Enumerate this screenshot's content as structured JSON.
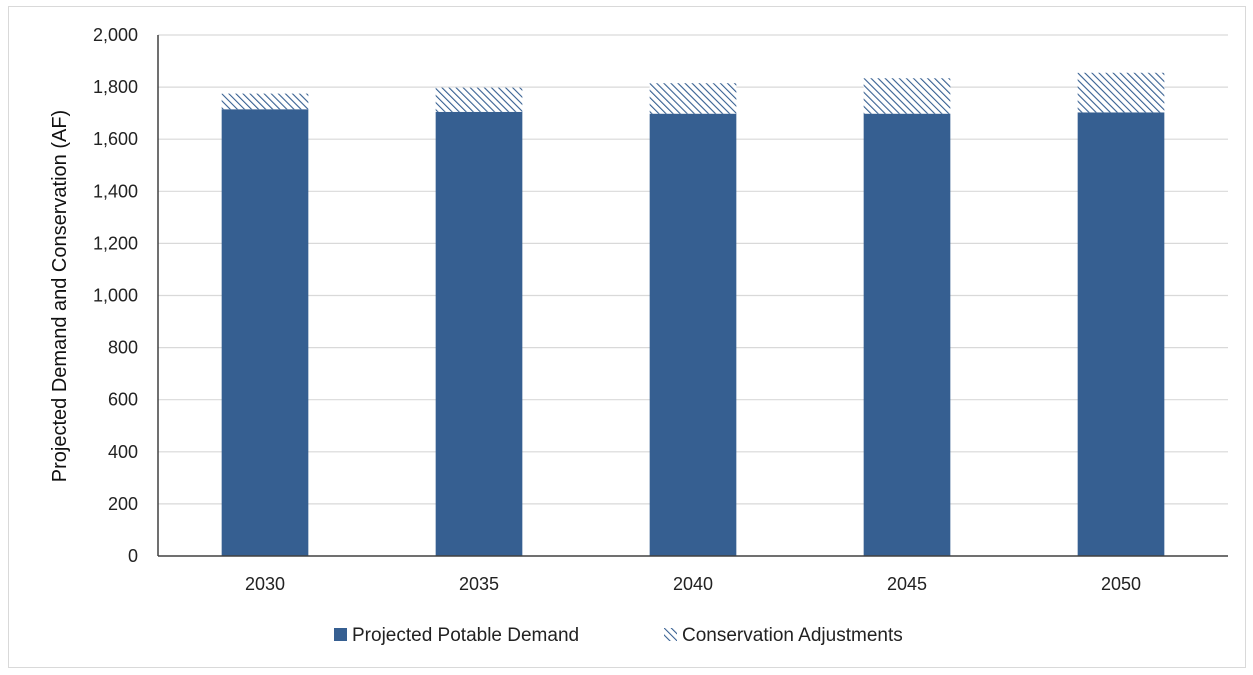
{
  "chart_data": {
    "type": "bar",
    "stacked": true,
    "title": "",
    "xlabel": "",
    "ylabel": "Projected  Demand and Conservation (AF)",
    "ylim": [
      0,
      2000
    ],
    "ytick_step": 200,
    "yticks": [
      "0",
      "200",
      "400",
      "600",
      "800",
      "1,000",
      "1,200",
      "1,400",
      "1,600",
      "1,800",
      "2,000"
    ],
    "grid": true,
    "legend_position": "bottom",
    "categories": [
      "2030",
      "2035",
      "2040",
      "2045",
      "2050"
    ],
    "series": [
      {
        "name": "Projected Potable Demand",
        "values": [
          1715,
          1705,
          1698,
          1698,
          1703
        ],
        "color": "#365f91",
        "pattern": "solid"
      },
      {
        "name": "Conservation Adjustments",
        "values": [
          60,
          93,
          117,
          136,
          152
        ],
        "color": "#365f91",
        "pattern": "diagonal-hatch"
      }
    ]
  }
}
